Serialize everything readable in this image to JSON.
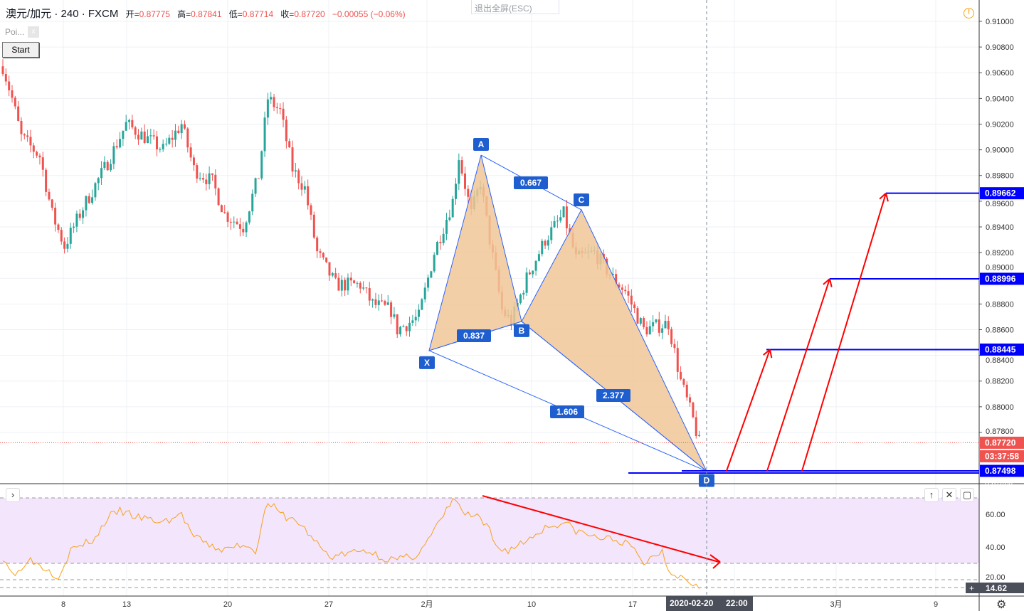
{
  "header": {
    "symbol": "澳元/加元",
    "interval": "240",
    "exchange": "FXCM",
    "open_label": "开=",
    "open": "0.87775",
    "high_label": "高=",
    "high": "0.87841",
    "low_label": "低=",
    "low": "0.87714",
    "close_label": "收=",
    "close": "0.87720",
    "change": "−0.00055 (−0.06%)"
  },
  "exit_fullscreen": "退出全屏(ESC)",
  "indicator_pill": {
    "label": "Poi...",
    "close": "x"
  },
  "start_button": "Start",
  "colors": {
    "up": "#26a69a",
    "down": "#ef5350",
    "pattern_fill": "#f0c796",
    "pattern_line": "#2962ff",
    "label_bg": "#1e5ecf",
    "level": "#0000ff",
    "arrow": "#ff0000",
    "rsi_line": "#f7a21b",
    "rsi_band": "#f3e5fc"
  },
  "chart_data": {
    "type": "candlestick",
    "price_axis": [
      "0.91000",
      "0.90800",
      "0.90600",
      "0.90400",
      "0.90200",
      "0.90000",
      "0.89800",
      "0.89600",
      "0.89400",
      "0.89200",
      "0.89000",
      "0.88800",
      "0.88600",
      "0.88400",
      "0.88200",
      "0.88000",
      "0.87800"
    ],
    "ylim": [
      0.874,
      0.9115
    ],
    "x_ticks": [
      "8",
      "13",
      "20",
      "27",
      "2月",
      "10",
      "17",
      "3月",
      "9"
    ],
    "crosshair_date": "2020-02-20",
    "crosshair_time": "22:00",
    "price_path": [
      [
        0,
        0.9065
      ],
      [
        3,
        0.904
      ],
      [
        6,
        0.901
      ],
      [
        12,
        0.8995
      ],
      [
        16,
        0.895
      ],
      [
        20,
        0.8925
      ],
      [
        26,
        0.8955
      ],
      [
        34,
        0.899
      ],
      [
        40,
        0.902
      ],
      [
        46,
        0.901
      ],
      [
        52,
        0.9
      ],
      [
        58,
        0.902
      ],
      [
        62,
        0.8985
      ],
      [
        68,
        0.8975
      ],
      [
        72,
        0.895
      ],
      [
        78,
        0.894
      ],
      [
        83,
        0.898
      ],
      [
        86,
        0.904
      ],
      [
        90,
        0.903
      ],
      [
        94,
        0.8985
      ],
      [
        98,
        0.897
      ],
      [
        102,
        0.892
      ],
      [
        108,
        0.8895
      ],
      [
        116,
        0.8895
      ],
      [
        120,
        0.888
      ],
      [
        126,
        0.8875
      ],
      [
        128,
        0.886
      ],
      [
        135,
        0.887
      ],
      [
        140,
        0.892
      ],
      [
        146,
        0.896
      ],
      [
        148,
        0.8995
      ],
      [
        152,
        0.895
      ],
      [
        155,
        0.8975
      ],
      [
        158,
        0.893
      ],
      [
        162,
        0.8875
      ],
      [
        165,
        0.8866
      ],
      [
        170,
        0.89
      ],
      [
        176,
        0.893
      ],
      [
        182,
        0.895
      ],
      [
        186,
        0.8915
      ],
      [
        192,
        0.892
      ],
      [
        198,
        0.89
      ],
      [
        202,
        0.889
      ],
      [
        208,
        0.886
      ],
      [
        216,
        0.8865
      ],
      [
        220,
        0.882
      ],
      [
        224,
        0.879
      ],
      [
        226,
        0.8772
      ]
    ],
    "harmonic_pattern": {
      "points": [
        {
          "label": "X",
          "price": 0.88437
        },
        {
          "label": "A",
          "price": 0.89959
        },
        {
          "label": "B",
          "price": 0.88664
        },
        {
          "label": "C",
          "price": 0.89533
        },
        {
          "label": "D",
          "price": 0.87498
        }
      ],
      "ratios": {
        "XB": "0.837",
        "AC": "0.667",
        "BD": "2.377",
        "XD": "1.606"
      }
    },
    "levels": [
      "0.89662",
      "0.88996",
      "0.88445",
      "0.87498"
    ],
    "last_price": "0.87720",
    "countdown": "03:37:58",
    "partial_label": "0.87484",
    "rsi": {
      "axis": [
        "60.00",
        "40.00",
        "20.00"
      ],
      "bands": [
        70,
        30
      ],
      "current": "14.62",
      "path": [
        [
          0,
          34
        ],
        [
          4,
          22
        ],
        [
          8,
          33
        ],
        [
          14,
          27
        ],
        [
          18,
          22
        ],
        [
          22,
          38
        ],
        [
          30,
          45
        ],
        [
          34,
          58
        ],
        [
          38,
          62
        ],
        [
          44,
          58
        ],
        [
          52,
          55
        ],
        [
          58,
          60
        ],
        [
          62,
          46
        ],
        [
          68,
          40
        ],
        [
          72,
          38
        ],
        [
          78,
          42
        ],
        [
          82,
          38
        ],
        [
          86,
          68
        ],
        [
          90,
          60
        ],
        [
          96,
          55
        ],
        [
          102,
          42
        ],
        [
          106,
          34
        ],
        [
          112,
          36
        ],
        [
          118,
          38
        ],
        [
          124,
          33
        ],
        [
          128,
          32
        ],
        [
          134,
          35
        ],
        [
          138,
          44
        ],
        [
          144,
          62
        ],
        [
          146,
          70
        ],
        [
          150,
          60
        ],
        [
          154,
          58
        ],
        [
          158,
          50
        ],
        [
          160,
          40
        ],
        [
          164,
          38
        ],
        [
          170,
          44
        ],
        [
          176,
          52
        ],
        [
          182,
          55
        ],
        [
          186,
          50
        ],
        [
          192,
          46
        ],
        [
          200,
          44
        ],
        [
          204,
          40
        ],
        [
          208,
          30
        ],
        [
          214,
          38
        ],
        [
          216,
          26
        ],
        [
          220,
          22
        ],
        [
          224,
          18
        ],
        [
          226,
          17
        ]
      ]
    }
  }
}
